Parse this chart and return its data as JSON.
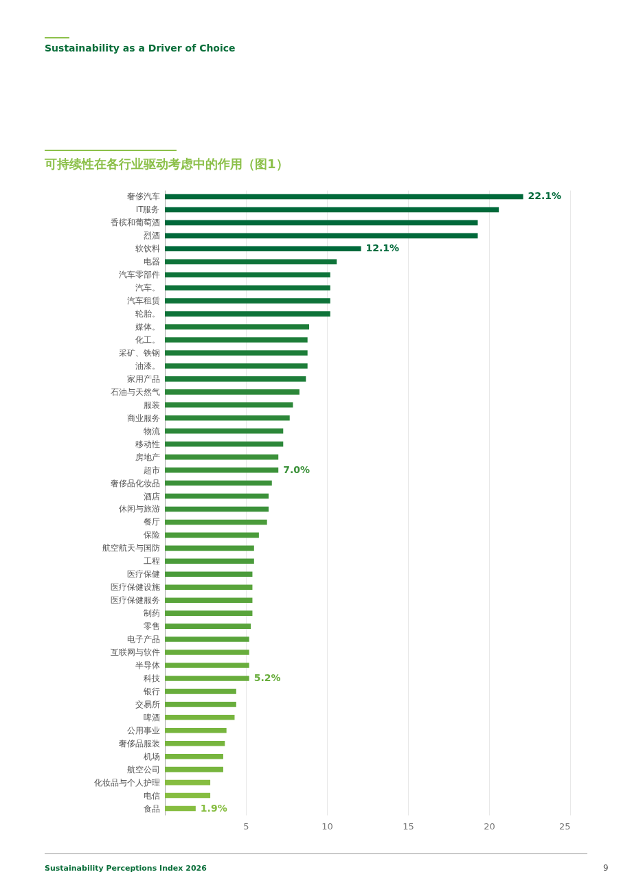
{
  "chart_data": {
    "type": "bar",
    "orientation": "horizontal",
    "title": "可持续性在各行业驱动考虑中的作用（图1）",
    "annotations": [
      "Sustainability as a Driver of Choice",
      "Sustainability Perceptions Index 2026",
      "9"
    ],
    "categories": [
      "奢侈汽车",
      "IT服务",
      "香槟和葡萄酒",
      "烈酒",
      "软饮料",
      "电器",
      "汽车零部件",
      "汽车。",
      "汽车租赁",
      "轮胎。",
      "媒体。",
      "化工。",
      "采矿、铁钢",
      "油漆。",
      "家用产品",
      "石油与天然气",
      "服装",
      "商业服务",
      "物流",
      "移动性",
      "房地产",
      "超市",
      "奢侈品化妆品",
      "酒店",
      "休闲与旅游",
      "餐厅",
      "保险",
      "航空航天与国防",
      "工程",
      "医疗保健",
      "医疗保健设施",
      "医疗保健服务",
      "制药",
      "零售",
      "电子产品",
      "互联网与软件",
      "半导体",
      "科技",
      "银行",
      "交易所",
      "啤酒",
      "公用事业",
      "奢侈品服装",
      "机场",
      "航空公司",
      "化妆品与个人护理",
      "电信",
      "食品"
    ],
    "values": [
      22.1,
      20.6,
      19.3,
      19.3,
      12.1,
      10.6,
      10.2,
      10.2,
      10.2,
      10.2,
      8.9,
      8.8,
      8.8,
      8.8,
      8.7,
      8.3,
      7.9,
      7.7,
      7.3,
      7.3,
      7.0,
      7.0,
      6.6,
      6.4,
      6.4,
      6.3,
      5.8,
      5.5,
      5.5,
      5.4,
      5.4,
      5.4,
      5.4,
      5.3,
      5.2,
      5.2,
      5.2,
      5.2,
      4.4,
      4.4,
      4.3,
      3.8,
      3.7,
      3.6,
      3.6,
      2.8,
      2.8,
      1.9
    ],
    "value_labels": [
      "22.1%",
      null,
      null,
      null,
      "12.1%",
      null,
      null,
      null,
      null,
      null,
      null,
      null,
      null,
      null,
      null,
      null,
      null,
      null,
      null,
      null,
      null,
      "7.0%",
      null,
      null,
      null,
      null,
      null,
      null,
      null,
      null,
      null,
      null,
      null,
      null,
      null,
      null,
      null,
      "5.2%",
      null,
      null,
      null,
      null,
      null,
      null,
      null,
      null,
      null,
      "1.9%"
    ],
    "colors": [
      "#00693a",
      "#00693a",
      "#00693a",
      "#00693a",
      "#00693a",
      "#0e7339",
      "#0e7339",
      "#0e7339",
      "#0e7339",
      "#0e7339",
      "#1d7d39",
      "#1d7d39",
      "#1d7d39",
      "#1d7d39",
      "#1d7d39",
      "#2c8739",
      "#2c8739",
      "#2c8739",
      "#2c8739",
      "#2c8739",
      "#3b9139",
      "#3b9139",
      "#3b9139",
      "#3b9139",
      "#3b9139",
      "#4a9b3a",
      "#4a9b3a",
      "#4a9b3a",
      "#4a9b3a",
      "#4a9b3a",
      "#59a43b",
      "#59a43b",
      "#59a43b",
      "#59a43b",
      "#59a43b",
      "#68ad3c",
      "#68ad3c",
      "#68ad3c",
      "#68ad3c",
      "#68ad3c",
      "#77b53e",
      "#77b53e",
      "#77b53e",
      "#77b53e",
      "#77b53e",
      "#86bd40",
      "#86bd40",
      "#86bd40"
    ],
    "xlim": [
      0,
      25
    ],
    "xticks": [
      5,
      10,
      15,
      20,
      25
    ],
    "grid": "x"
  }
}
